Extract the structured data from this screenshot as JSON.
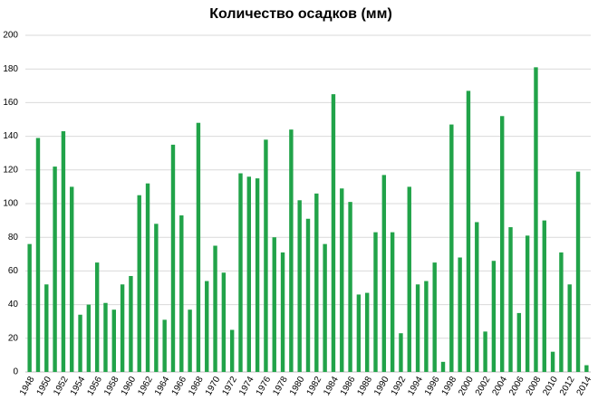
{
  "chart_data": {
    "type": "bar",
    "title": "Количество осадков (мм)",
    "categories": [
      "1948",
      null,
      "1950",
      null,
      "1952",
      null,
      "1954",
      null,
      "1956",
      null,
      "1958",
      null,
      "1960",
      null,
      "1962",
      null,
      "1964",
      null,
      "1966",
      null,
      "1968",
      null,
      "1970",
      null,
      "1972",
      null,
      "1974",
      null,
      "1976",
      null,
      "1978",
      null,
      "1980",
      null,
      "1982",
      null,
      "1984",
      null,
      "1986",
      null,
      "1988",
      null,
      "1990",
      null,
      "1992",
      null,
      "1994",
      null,
      "1996",
      null,
      "1998",
      null,
      "2000",
      null,
      "2002",
      null,
      "2004",
      null,
      "2006",
      null,
      "2008",
      null,
      "2010",
      null,
      "2012",
      null,
      "2014"
    ],
    "values": [
      76,
      139,
      52,
      122,
      143,
      110,
      34,
      40,
      65,
      41,
      37,
      52,
      57,
      105,
      112,
      88,
      31,
      135,
      93,
      37,
      148,
      54,
      75,
      59,
      25,
      118,
      116,
      115,
      138,
      80,
      71,
      144,
      102,
      91,
      106,
      76,
      165,
      109,
      101,
      46,
      47,
      83,
      117,
      83,
      23,
      110,
      52,
      54,
      65,
      6,
      147,
      68,
      167,
      89,
      24,
      66,
      152,
      86,
      35,
      81,
      181,
      90,
      12,
      71,
      52,
      119,
      4
    ],
    "color": "#21a349",
    "ylim": [
      0,
      200
    ],
    "yticks": [
      0,
      20,
      40,
      60,
      80,
      100,
      120,
      140,
      160,
      180,
      200
    ],
    "grid": true
  }
}
